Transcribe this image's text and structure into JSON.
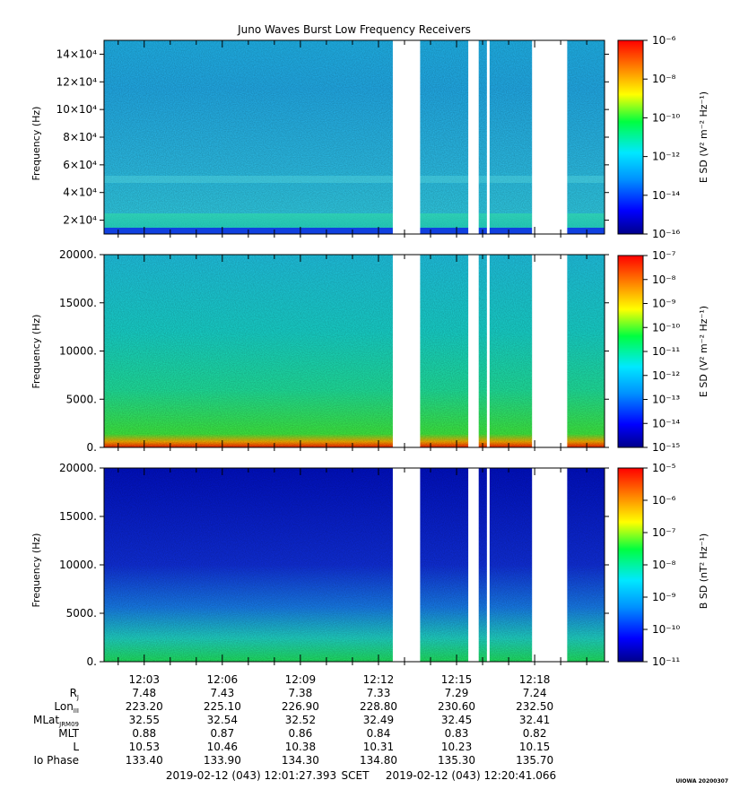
{
  "figure": {
    "title": "Juno Waves Burst Low Frequency Receivers",
    "stamp": "UIOWA 20200307",
    "footer": {
      "start": "2019-02-12 (043) 12:01:27.393",
      "scet_label": "SCET",
      "end": "2019-02-12 (043) 12:20:41.066"
    },
    "time_ticks": [
      "12:03",
      "12:06",
      "12:09",
      "12:12",
      "12:15",
      "12:18"
    ],
    "ephemeris": [
      {
        "label": "R",
        "sub": "J",
        "values": [
          "7.48",
          "7.43",
          "7.38",
          "7.33",
          "7.29",
          "7.24"
        ]
      },
      {
        "label": "Lon",
        "sub": "III",
        "values": [
          "223.20",
          "225.10",
          "226.90",
          "228.80",
          "230.60",
          "232.50"
        ]
      },
      {
        "label": "MLat",
        "sub": "JRM09",
        "values": [
          "32.55",
          "32.54",
          "32.52",
          "32.49",
          "32.45",
          "32.41"
        ]
      },
      {
        "label": "MLT",
        "sub": "",
        "values": [
          "0.88",
          "0.87",
          "0.86",
          "0.84",
          "0.83",
          "0.82"
        ]
      },
      {
        "label": "L",
        "sub": "",
        "values": [
          "10.53",
          "10.46",
          "10.38",
          "10.31",
          "10.23",
          "10.15"
        ]
      },
      {
        "label": "Io Phase",
        "sub": "",
        "values": [
          "133.40",
          "133.90",
          "134.30",
          "134.80",
          "135.30",
          "135.70"
        ]
      }
    ]
  },
  "colors": {
    "background": "#ffffff",
    "axis": "#000000",
    "gap": "#ffffff",
    "colormap": [
      "#00008b",
      "#0000ff",
      "#0080ff",
      "#00e5ff",
      "#00ff40",
      "#ffff00",
      "#ff8000",
      "#ff0000"
    ]
  },
  "chart_data": [
    {
      "type": "heatmap",
      "name": "E-field spectrogram (high range)",
      "ylabel": "Frequency (Hz)",
      "yticks": [
        "2×10⁴",
        "4×10⁴",
        "6×10⁴",
        "8×10⁴",
        "10×10⁴",
        "12×10⁴",
        "14×10⁴"
      ],
      "ytick_values": [
        20000,
        40000,
        60000,
        80000,
        100000,
        120000,
        140000
      ],
      "ylim": [
        10000,
        150000
      ],
      "xlim": [
        "12:01:27.393",
        "12:20:41.066"
      ],
      "colorbar_label": "E SD (V² m⁻² Hz⁻¹)",
      "colorbar_ticks": [
        "10⁻⁶",
        "10⁻⁸",
        "10⁻¹⁰",
        "10⁻¹²",
        "10⁻¹⁴",
        "10⁻¹⁶"
      ],
      "colorbar_range": [
        "1e-16",
        "1e-6"
      ],
      "data_gaps_min": [
        [
          12.55,
          13.6
        ],
        [
          15.45,
          15.85
        ],
        [
          17.9,
          19.25
        ]
      ]
    },
    {
      "type": "heatmap",
      "name": "E-field spectrogram (low range)",
      "ylabel": "Frequency (Hz)",
      "yticks": [
        "20000.",
        "15000.",
        "10000.",
        "5000.",
        "0."
      ],
      "ytick_values": [
        20000,
        15000,
        10000,
        5000,
        0
      ],
      "ylim": [
        0,
        20000
      ],
      "xlim": [
        "12:01:27.393",
        "12:20:41.066"
      ],
      "colorbar_label": "E SD (V² m⁻² Hz⁻¹)",
      "colorbar_ticks": [
        "10⁻⁷",
        "10⁻⁸",
        "10⁻⁹",
        "10⁻¹⁰",
        "10⁻¹¹",
        "10⁻¹²",
        "10⁻¹³",
        "10⁻¹⁴",
        "10⁻¹⁵"
      ],
      "colorbar_range": [
        "1e-15",
        "1e-7"
      ],
      "data_gaps_min": [
        [
          12.55,
          13.6
        ],
        [
          15.45,
          15.85
        ],
        [
          17.9,
          19.25
        ]
      ]
    },
    {
      "type": "heatmap",
      "name": "B-field spectrogram",
      "ylabel": "Frequency (Hz)",
      "yticks": [
        "20000.",
        "15000.",
        "10000.",
        "5000.",
        "0."
      ],
      "ytick_values": [
        20000,
        15000,
        10000,
        5000,
        0
      ],
      "ylim": [
        0,
        20000
      ],
      "xlim": [
        "12:01:27.393",
        "12:20:41.066"
      ],
      "colorbar_label": "B SD (nT² Hz⁻¹)",
      "colorbar_ticks": [
        "10⁻⁵",
        "10⁻⁶",
        "10⁻⁷",
        "10⁻⁸",
        "10⁻⁹",
        "10⁻¹⁰",
        "10⁻¹¹"
      ],
      "colorbar_range": [
        "1e-11",
        "1e-4"
      ],
      "data_gaps_min": [
        [
          12.55,
          13.6
        ],
        [
          15.45,
          15.85
        ],
        [
          17.9,
          19.25
        ]
      ]
    }
  ]
}
